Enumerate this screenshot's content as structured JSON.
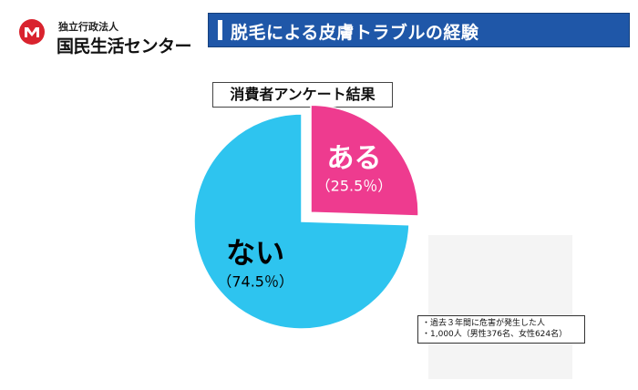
{
  "header": {
    "org_label": "独立行政法人",
    "org_name": "国民生活センター",
    "title": "脱毛による皮膚トラブルの経験"
  },
  "colors": {
    "title_bar": "#1f57a8",
    "logo_red": "#d9232e",
    "yes_slice": "#ee3b8f",
    "no_slice": "#2ec4ef"
  },
  "survey_label": "消費者アンケート結果",
  "notes": [
    "・過去３年間に危害が発生した人",
    "・1,000人（男性376名、女性624名）"
  ],
  "chart_data": {
    "type": "pie",
    "title": "消費者アンケート結果",
    "slices": [
      {
        "label": "ある",
        "value": 25.5,
        "value_label": "（25.5％）",
        "color": "#ee3b8f",
        "exploded": true
      },
      {
        "label": "ない",
        "value": 74.5,
        "value_label": "（74.5％）",
        "color": "#2ec4ef",
        "exploded": false
      }
    ]
  }
}
